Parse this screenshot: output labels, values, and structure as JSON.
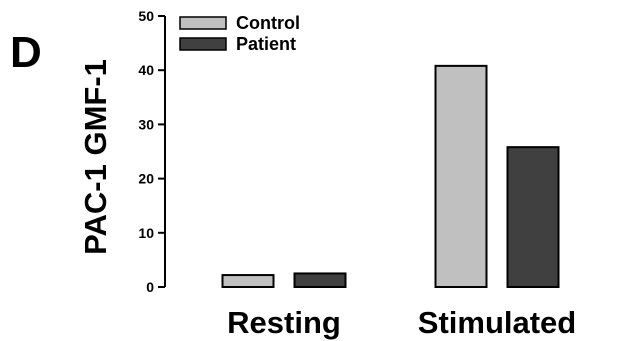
{
  "panel_label": "D",
  "chart_data": {
    "type": "bar",
    "title": "",
    "xlabel": "",
    "ylabel": "PAC-1 GMF-1",
    "categories": [
      "Resting",
      "Stimulated"
    ],
    "series": [
      {
        "name": "Control",
        "values": [
          2.2,
          40.8
        ],
        "color": "#c0c0c0"
      },
      {
        "name": "Patient",
        "values": [
          2.5,
          25.8
        ],
        "color": "#404040"
      }
    ],
    "ylim": [
      0,
      50
    ],
    "yticks": [
      "0",
      "10",
      "20",
      "30",
      "40",
      "50"
    ],
    "grid": false,
    "legend_position": "top-left"
  }
}
